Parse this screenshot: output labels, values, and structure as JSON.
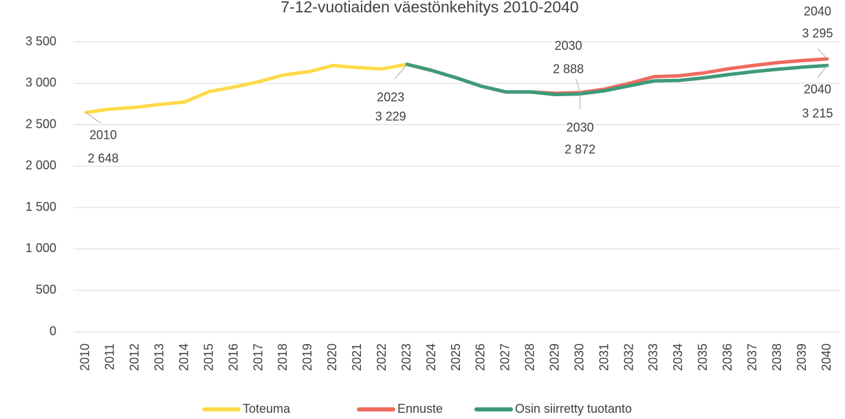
{
  "chart_data": {
    "type": "line",
    "title": "7-12-vuotiaiden väestönkehitys 2010-2040",
    "categories": [
      "2010",
      "2011",
      "2012",
      "2013",
      "2014",
      "2015",
      "2016",
      "2017",
      "2018",
      "2019",
      "2020",
      "2021",
      "2022",
      "2023",
      "2024",
      "2025",
      "2026",
      "2027",
      "2028",
      "2029",
      "2030",
      "2031",
      "2032",
      "2033",
      "2034",
      "2035",
      "2036",
      "2037",
      "2038",
      "2039",
      "2040"
    ],
    "series": [
      {
        "name": "Toteuma",
        "color": "#ffd94a",
        "values": [
          2648,
          2690,
          2710,
          2745,
          2775,
          2900,
          2955,
          3020,
          3100,
          3140,
          3215,
          3190,
          3175,
          3229,
          null,
          null,
          null,
          null,
          null,
          null,
          null,
          null,
          null,
          null,
          null,
          null,
          null,
          null,
          null,
          null,
          null
        ],
        "value_labels": [
          "2 648",
          null,
          null,
          null,
          null,
          null,
          null,
          null,
          null,
          null,
          null,
          null,
          null,
          "3 229",
          null,
          null,
          null,
          null,
          null,
          null,
          null,
          null,
          null,
          null,
          null,
          null,
          null,
          null,
          null,
          null,
          null
        ]
      },
      {
        "name": "Ennuste",
        "color": "#ee6b5e",
        "values": [
          null,
          null,
          null,
          null,
          null,
          null,
          null,
          null,
          null,
          null,
          null,
          null,
          null,
          3229,
          3155,
          3065,
          2965,
          2895,
          2895,
          2880,
          2888,
          2930,
          3000,
          3080,
          3090,
          3125,
          3175,
          3215,
          3250,
          3275,
          3295
        ],
        "value_labels": [
          null,
          null,
          null,
          null,
          null,
          null,
          null,
          null,
          null,
          null,
          null,
          null,
          null,
          null,
          null,
          null,
          null,
          null,
          null,
          null,
          "2 888",
          null,
          null,
          null,
          null,
          null,
          null,
          null,
          null,
          null,
          "3 295"
        ]
      },
      {
        "name": "Osin siirretty tuotanto",
        "color": "#3f9a78",
        "values": [
          null,
          null,
          null,
          null,
          null,
          null,
          null,
          null,
          null,
          null,
          null,
          null,
          null,
          3229,
          3155,
          3065,
          2965,
          2895,
          2895,
          2865,
          2872,
          2910,
          2970,
          3030,
          3035,
          3065,
          3105,
          3140,
          3170,
          3195,
          3215
        ],
        "value_labels": [
          null,
          null,
          null,
          null,
          null,
          null,
          null,
          null,
          null,
          null,
          null,
          null,
          null,
          null,
          null,
          null,
          null,
          null,
          null,
          null,
          "2 872",
          null,
          null,
          null,
          null,
          null,
          null,
          null,
          null,
          null,
          "3 215"
        ]
      }
    ],
    "ylim": [
      0,
      3500
    ],
    "yticks": [
      0,
      500,
      {
        "value": 1000,
        "label": "1 000"
      },
      {
        "value": 1500,
        "label": "1 500"
      },
      {
        "value": 2000,
        "label": "2 000"
      },
      {
        "value": 2500,
        "label": "2 500"
      },
      {
        "value": 3000,
        "label": "3 000"
      },
      {
        "value": 3500,
        "label": "3 500"
      }
    ],
    "grid": true,
    "legend": "bottom"
  }
}
